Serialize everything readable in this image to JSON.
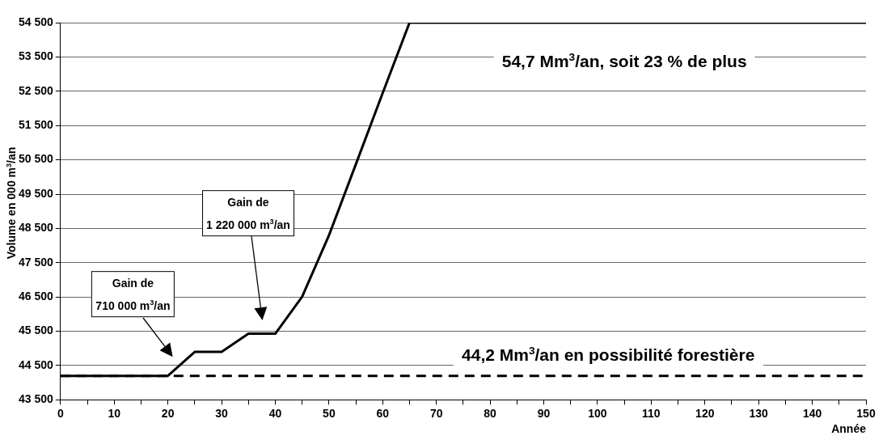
{
  "chart_data": {
    "type": "line",
    "ylabel": "Volume en 000 m$^{3}$/an",
    "xlabel": "Année",
    "x": [
      0,
      5,
      10,
      15,
      20,
      25,
      30,
      35,
      40,
      45,
      50,
      55,
      60,
      65,
      70,
      80,
      90,
      100,
      110,
      120,
      130,
      140,
      150
    ],
    "series": [
      {
        "color": "#000000",
        "values": [
          44200,
          44200,
          44200,
          44200,
          44200,
          44900,
          44900,
          45430,
          45430,
          46510,
          48300,
          50370,
          52450,
          54500,
          54500,
          54500,
          54500,
          54500,
          54500,
          54500,
          54500,
          54500,
          54500
        ]
      }
    ],
    "xlim": [
      0,
      150
    ],
    "ylim": [
      43500,
      54500
    ],
    "xticks": [
      0,
      {
        "value": 5,
        "label": null
      },
      10,
      {
        "value": 15,
        "label": null
      },
      20,
      {
        "value": 25,
        "label": null
      },
      30,
      {
        "value": 35,
        "label": null
      },
      40,
      {
        "value": 45,
        "label": null
      },
      50,
      {
        "value": 55,
        "label": null
      },
      60,
      {
        "value": 65,
        "label": null
      },
      70,
      {
        "value": 75,
        "label": null
      },
      80,
      {
        "value": 85,
        "label": null
      },
      90,
      {
        "value": 95,
        "label": null
      },
      100,
      {
        "value": 105,
        "label": null
      },
      110,
      {
        "value": 115,
        "label": null
      },
      120,
      {
        "value": 125,
        "label": null
      },
      130,
      {
        "value": 135,
        "label": null
      },
      140,
      {
        "value": 145,
        "label": null
      },
      150
    ],
    "yticks": [
      {
        "value": 43500,
        "label": "43 500"
      },
      {
        "value": 44500,
        "label": "44 500"
      },
      {
        "value": 45500,
        "label": "45 500"
      },
      {
        "value": 46500,
        "label": "46 500"
      },
      {
        "value": 47500,
        "label": "47 500"
      },
      {
        "value": 48500,
        "label": "48 500"
      },
      {
        "value": 49500,
        "label": "49 500"
      },
      {
        "value": 50500,
        "label": "50 500"
      },
      {
        "value": 51500,
        "label": "51 500"
      },
      {
        "value": 52500,
        "label": "52 500"
      },
      {
        "value": 53500,
        "label": "53 500"
      },
      {
        "value": 54500,
        "label": "54 500"
      }
    ],
    "ref_lines": [
      {
        "axis": "y",
        "value": 44200,
        "color": "#000000",
        "line_style": "dashed"
      }
    ],
    "annotations": [
      "54,7 Mm$^{3}$/an,  soit  23 % de plus",
      "44,2 Mm$^{3}$/an en possibilité forestière",
      "Gain  de\n710 000 m$^{3}$/an",
      "Gain  de\n1 220 000 m$^{3}$/an"
    ],
    "grid": "y",
    "legend": false,
    "marker": "none",
    "line_style": "solid"
  }
}
